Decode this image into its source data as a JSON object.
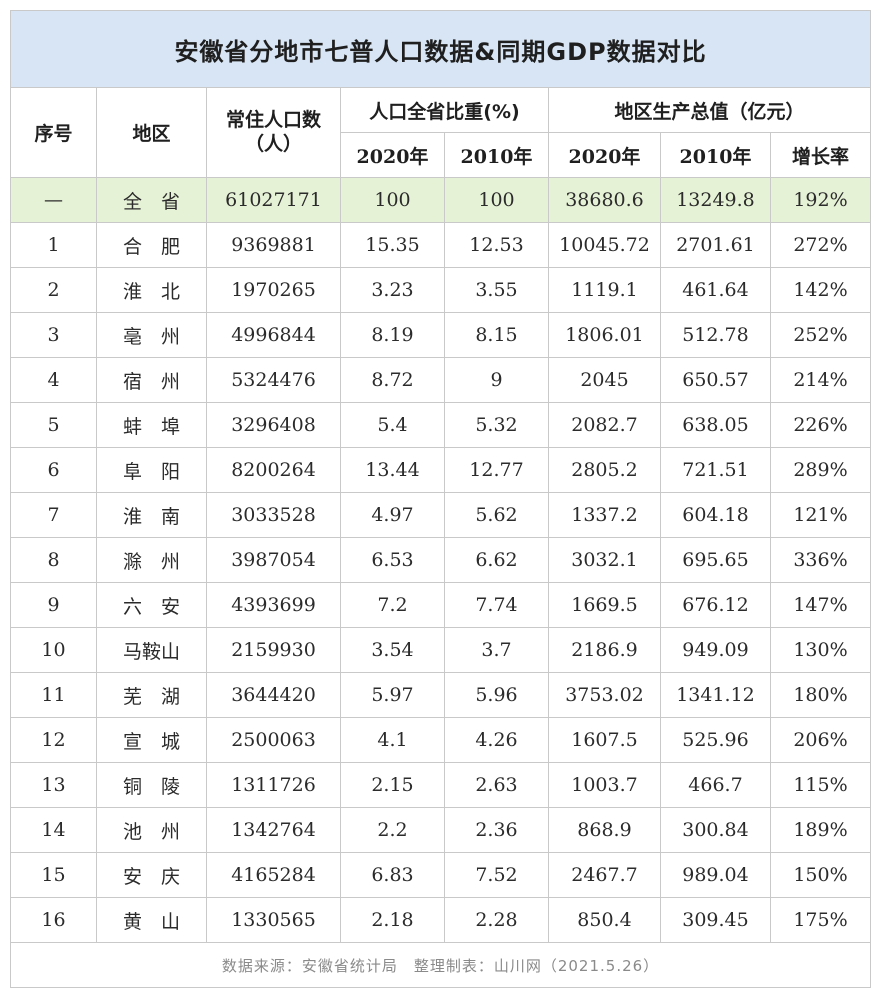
{
  "title": "安徽省分地市七普人口数据&同期GDP数据对比",
  "headers": {
    "index": "序号",
    "region": "地区",
    "population_line1": "常住人口数",
    "population_line2": "（人）",
    "ratio_group": "人口全省比重(%)",
    "ratio_2020": "2020年",
    "ratio_2010": "2010年",
    "gdp_group": "地区生产总值（亿元）",
    "gdp_2020": "2020年",
    "gdp_2010": "2010年",
    "growth": "增长率"
  },
  "total": {
    "index": "—",
    "region": "全　省",
    "population": "61027171",
    "ratio_2020": "100",
    "ratio_2010": "100",
    "gdp_2020": "38680.6",
    "gdp_2010": "13249.8",
    "growth": "192%"
  },
  "rows": [
    {
      "index": "1",
      "region": "合　肥",
      "population": "9369881",
      "ratio_2020": "15.35",
      "ratio_2010": "12.53",
      "gdp_2020": "10045.72",
      "gdp_2010": "2701.61",
      "growth": "272%"
    },
    {
      "index": "2",
      "region": "淮　北",
      "population": "1970265",
      "ratio_2020": "3.23",
      "ratio_2010": "3.55",
      "gdp_2020": "1119.1",
      "gdp_2010": "461.64",
      "growth": "142%"
    },
    {
      "index": "3",
      "region": "亳　州",
      "population": "4996844",
      "ratio_2020": "8.19",
      "ratio_2010": "8.15",
      "gdp_2020": "1806.01",
      "gdp_2010": "512.78",
      "growth": "252%"
    },
    {
      "index": "4",
      "region": "宿　州",
      "population": "5324476",
      "ratio_2020": "8.72",
      "ratio_2010": "9",
      "gdp_2020": "2045",
      "gdp_2010": "650.57",
      "growth": "214%"
    },
    {
      "index": "5",
      "region": "蚌　埠",
      "population": "3296408",
      "ratio_2020": "5.4",
      "ratio_2010": "5.32",
      "gdp_2020": "2082.7",
      "gdp_2010": "638.05",
      "growth": "226%"
    },
    {
      "index": "6",
      "region": "阜　阳",
      "population": "8200264",
      "ratio_2020": "13.44",
      "ratio_2010": "12.77",
      "gdp_2020": "2805.2",
      "gdp_2010": "721.51",
      "growth": "289%"
    },
    {
      "index": "7",
      "region": "淮　南",
      "population": "3033528",
      "ratio_2020": "4.97",
      "ratio_2010": "5.62",
      "gdp_2020": "1337.2",
      "gdp_2010": "604.18",
      "growth": "121%"
    },
    {
      "index": "8",
      "region": "滁　州",
      "population": "3987054",
      "ratio_2020": "6.53",
      "ratio_2010": "6.62",
      "gdp_2020": "3032.1",
      "gdp_2010": "695.65",
      "growth": "336%"
    },
    {
      "index": "9",
      "region": "六　安",
      "population": "4393699",
      "ratio_2020": "7.2",
      "ratio_2010": "7.74",
      "gdp_2020": "1669.5",
      "gdp_2010": "676.12",
      "growth": "147%"
    },
    {
      "index": "10",
      "region": "马鞍山",
      "population": "2159930",
      "ratio_2020": "3.54",
      "ratio_2010": "3.7",
      "gdp_2020": "2186.9",
      "gdp_2010": "949.09",
      "growth": "130%"
    },
    {
      "index": "11",
      "region": "芜　湖",
      "population": "3644420",
      "ratio_2020": "5.97",
      "ratio_2010": "5.96",
      "gdp_2020": "3753.02",
      "gdp_2010": "1341.12",
      "growth": "180%"
    },
    {
      "index": "12",
      "region": "宣　城",
      "population": "2500063",
      "ratio_2020": "4.1",
      "ratio_2010": "4.26",
      "gdp_2020": "1607.5",
      "gdp_2010": "525.96",
      "growth": "206%"
    },
    {
      "index": "13",
      "region": "铜　陵",
      "population": "1311726",
      "ratio_2020": "2.15",
      "ratio_2010": "2.63",
      "gdp_2020": "1003.7",
      "gdp_2010": "466.7",
      "growth": "115%"
    },
    {
      "index": "14",
      "region": "池　州",
      "population": "1342764",
      "ratio_2020": "2.2",
      "ratio_2010": "2.36",
      "gdp_2020": "868.9",
      "gdp_2010": "300.84",
      "growth": "189%"
    },
    {
      "index": "15",
      "region": "安　庆",
      "population": "4165284",
      "ratio_2020": "6.83",
      "ratio_2010": "7.52",
      "gdp_2020": "2467.7",
      "gdp_2010": "989.04",
      "growth": "150%"
    },
    {
      "index": "16",
      "region": "黄　山",
      "population": "1330565",
      "ratio_2020": "2.18",
      "ratio_2010": "2.28",
      "gdp_2020": "850.4",
      "gdp_2010": "309.45",
      "growth": "175%"
    }
  ],
  "footer": "数据来源：安徽省统计局　整理制表：山川网（2021.5.26）",
  "colors": {
    "title_bg": "#d8e5f4",
    "total_row_bg": "#e6f2d6",
    "border": "#c9c9c9"
  }
}
